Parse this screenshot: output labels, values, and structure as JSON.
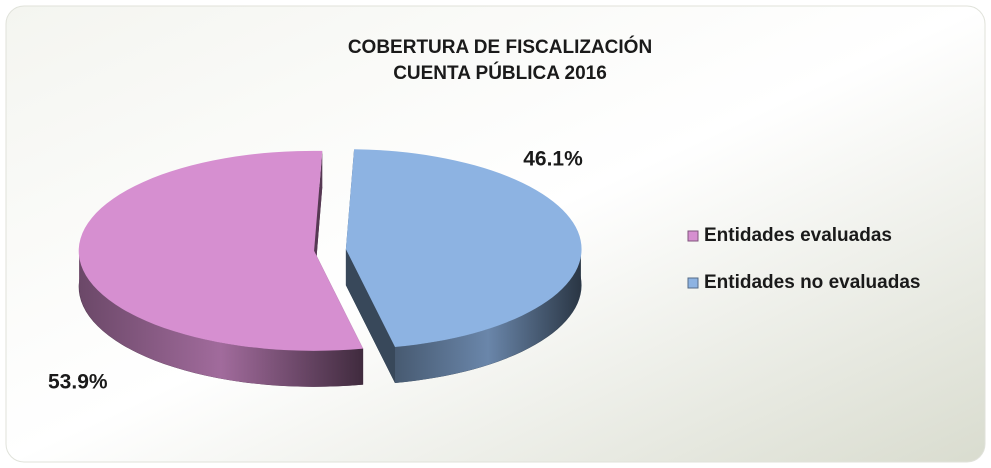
{
  "chart_data": {
    "type": "pie3d",
    "title": "COBERTURA DE FISCALIZACIÓN",
    "subtitle": "CUENTA PÚBLICA 2016",
    "categories": [
      "Entidades evaluadas",
      "Entidades no evaluadas"
    ],
    "series": [
      {
        "values": [
          53.9,
          46.1
        ],
        "value_labels": [
          "53.9%",
          "46.1%"
        ],
        "colors": [
          "#d68fd0",
          "#8db3e2"
        ]
      }
    ],
    "legend": "right"
  }
}
